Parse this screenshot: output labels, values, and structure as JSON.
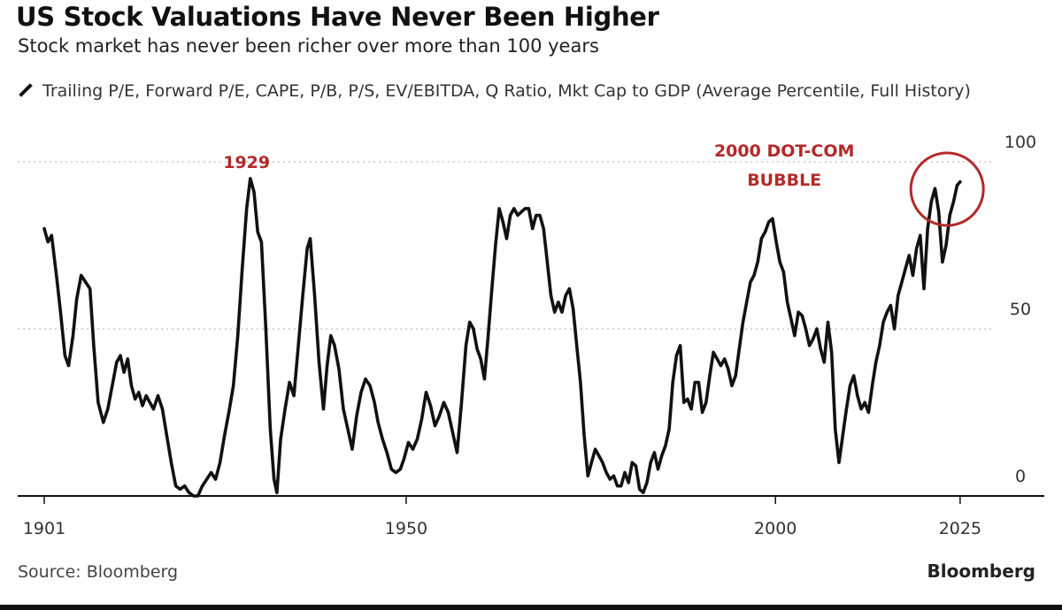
{
  "header": {
    "title": "US Stock Valuations Have Never Been Higher",
    "subtitle": "Stock market has never been richer over more than 100 years"
  },
  "legend": {
    "label": "Trailing P/E, Forward P/E, CAPE, P/B, P/S, EV/EBITDA, Q Ratio, Mkt Cap to GDP (Average Percentile, Full History)"
  },
  "footer": {
    "source": "Source: Bloomberg",
    "brand": "Bloomberg"
  },
  "chart_data": {
    "type": "line",
    "title": "US Stock Valuations Have Never Been Higher",
    "subtitle": "Stock market has never been richer over more than 100 years",
    "xlabel": "",
    "ylabel": "",
    "xlim": [
      1901,
      2034
    ],
    "ylim": [
      0,
      100
    ],
    "x_ticks": [
      1901,
      1950,
      2000,
      2025
    ],
    "x_tick_labels": [
      "1901",
      "1950",
      "2000",
      "2025"
    ],
    "y_ticks": [
      0,
      50,
      100
    ],
    "y_tick_labels": [
      "0",
      "50",
      "100"
    ],
    "grid": "horizontal dotted at 50 and 100",
    "line_color": "#111111",
    "annotation_color": "#b22a2a",
    "annotations": [
      {
        "text": "1929",
        "x": 1929,
        "y": 98
      },
      {
        "text": "2000 DOT-COM BUBBLE",
        "x": 1997,
        "y": 98
      },
      {
        "text": "",
        "shape": "circle",
        "x": 2023,
        "y": 91
      }
    ],
    "series": [
      {
        "values": [
          [
            1901,
            80
          ],
          [
            1901.5,
            76
          ],
          [
            1902,
            78
          ],
          [
            1902.7,
            65
          ],
          [
            1903.2,
            55
          ],
          [
            1903.8,
            42
          ],
          [
            1904.3,
            39
          ],
          [
            1904.9,
            48
          ],
          [
            1905.4,
            59
          ],
          [
            1906,
            66
          ],
          [
            1906.6,
            64
          ],
          [
            1907.2,
            62
          ],
          [
            1907.7,
            45
          ],
          [
            1908.3,
            28
          ],
          [
            1909,
            22
          ],
          [
            1909.6,
            26
          ],
          [
            1910.2,
            33
          ],
          [
            1910.8,
            40
          ],
          [
            1911.3,
            42
          ],
          [
            1911.8,
            37
          ],
          [
            1912.3,
            41
          ],
          [
            1912.8,
            33
          ],
          [
            1913.3,
            29
          ],
          [
            1913.8,
            31
          ],
          [
            1914.3,
            27
          ],
          [
            1914.8,
            30
          ],
          [
            1915.3,
            28
          ],
          [
            1915.8,
            26
          ],
          [
            1916.4,
            30
          ],
          [
            1917,
            26
          ],
          [
            1917.6,
            18
          ],
          [
            1918.2,
            10
          ],
          [
            1918.8,
            3
          ],
          [
            1919.4,
            2
          ],
          [
            1920,
            3
          ],
          [
            1920.6,
            1
          ],
          [
            1921.2,
            0
          ],
          [
            1921.8,
            0
          ],
          [
            1922.4,
            3
          ],
          [
            1923,
            5
          ],
          [
            1923.6,
            7
          ],
          [
            1924.2,
            5
          ],
          [
            1924.8,
            10
          ],
          [
            1925.4,
            18
          ],
          [
            1926,
            25
          ],
          [
            1926.6,
            33
          ],
          [
            1927.2,
            48
          ],
          [
            1927.8,
            68
          ],
          [
            1928.4,
            86
          ],
          [
            1928.9,
            95
          ],
          [
            1929.4,
            91
          ],
          [
            1929.9,
            79
          ],
          [
            1930.4,
            76
          ],
          [
            1931,
            50
          ],
          [
            1931.6,
            20
          ],
          [
            1932.1,
            5
          ],
          [
            1932.5,
            1
          ],
          [
            1933,
            17
          ],
          [
            1933.6,
            26
          ],
          [
            1934.2,
            34
          ],
          [
            1934.8,
            30
          ],
          [
            1935.4,
            45
          ],
          [
            1936,
            60
          ],
          [
            1936.6,
            74
          ],
          [
            1937,
            77
          ],
          [
            1937.6,
            60
          ],
          [
            1938.2,
            40
          ],
          [
            1938.8,
            26
          ],
          [
            1939.3,
            39
          ],
          [
            1939.8,
            48
          ],
          [
            1940.3,
            45
          ],
          [
            1940.9,
            38
          ],
          [
            1941.5,
            26
          ],
          [
            1942.1,
            20
          ],
          [
            1942.7,
            14
          ],
          [
            1943.3,
            24
          ],
          [
            1943.9,
            31
          ],
          [
            1944.5,
            35
          ],
          [
            1945.1,
            33
          ],
          [
            1945.7,
            28
          ],
          [
            1946.2,
            22
          ],
          [
            1946.8,
            17
          ],
          [
            1947.4,
            13
          ],
          [
            1948,
            8
          ],
          [
            1948.6,
            7
          ],
          [
            1949.2,
            8
          ],
          [
            1949.7,
            11
          ],
          [
            1950.3,
            16
          ],
          [
            1950.9,
            14
          ],
          [
            1951.5,
            17
          ],
          [
            1952.1,
            23
          ],
          [
            1952.7,
            31
          ],
          [
            1953.3,
            27
          ],
          [
            1953.9,
            21
          ],
          [
            1954.5,
            24
          ],
          [
            1955.1,
            28
          ],
          [
            1955.7,
            25
          ],
          [
            1956.3,
            19
          ],
          [
            1956.9,
            13
          ],
          [
            1957.5,
            28
          ],
          [
            1958.1,
            45
          ],
          [
            1958.6,
            52
          ],
          [
            1959.1,
            50
          ],
          [
            1959.6,
            44
          ],
          [
            1960.1,
            41
          ],
          [
            1960.6,
            35
          ],
          [
            1961.1,
            48
          ],
          [
            1961.6,
            62
          ],
          [
            1962.1,
            75
          ],
          [
            1962.6,
            86
          ],
          [
            1963.1,
            82
          ],
          [
            1963.6,
            77
          ],
          [
            1964.1,
            84
          ],
          [
            1964.6,
            86
          ],
          [
            1965.1,
            84
          ],
          [
            1965.6,
            85
          ],
          [
            1966.1,
            86
          ],
          [
            1966.6,
            86
          ],
          [
            1967.1,
            80
          ],
          [
            1967.6,
            84
          ],
          [
            1968.1,
            84
          ],
          [
            1968.6,
            80
          ],
          [
            1969.1,
            70
          ],
          [
            1969.6,
            60
          ],
          [
            1970.1,
            55
          ],
          [
            1970.6,
            58
          ],
          [
            1971.1,
            55
          ],
          [
            1971.6,
            60
          ],
          [
            1972.1,
            62
          ],
          [
            1972.6,
            56
          ],
          [
            1973.1,
            45
          ],
          [
            1973.6,
            34
          ],
          [
            1974.1,
            18
          ],
          [
            1974.6,
            6
          ],
          [
            1975.1,
            10
          ],
          [
            1975.6,
            14
          ],
          [
            1976.1,
            12
          ],
          [
            1976.6,
            10
          ],
          [
            1977.1,
            7
          ],
          [
            1977.6,
            5
          ],
          [
            1978.1,
            6
          ],
          [
            1978.6,
            3
          ],
          [
            1979.1,
            3
          ],
          [
            1979.6,
            7
          ],
          [
            1980.1,
            4
          ],
          [
            1980.6,
            10
          ],
          [
            1981.1,
            9
          ],
          [
            1981.6,
            2
          ],
          [
            1982.1,
            1
          ],
          [
            1982.6,
            4
          ],
          [
            1983.1,
            10
          ],
          [
            1983.6,
            13
          ],
          [
            1984.1,
            8
          ],
          [
            1984.6,
            12
          ],
          [
            1985.1,
            15
          ],
          [
            1985.6,
            20
          ],
          [
            1986.1,
            34
          ],
          [
            1986.6,
            42
          ],
          [
            1987.1,
            45
          ],
          [
            1987.6,
            28
          ],
          [
            1988.1,
            29
          ],
          [
            1988.6,
            26
          ],
          [
            1989.1,
            34
          ],
          [
            1989.6,
            34
          ],
          [
            1990.1,
            25
          ],
          [
            1990.6,
            28
          ],
          [
            1991.1,
            36
          ],
          [
            1991.6,
            43
          ],
          [
            1992.1,
            41
          ],
          [
            1992.6,
            39
          ],
          [
            1993.1,
            41
          ],
          [
            1993.6,
            38
          ],
          [
            1994.1,
            33
          ],
          [
            1994.6,
            36
          ],
          [
            1995.1,
            44
          ],
          [
            1995.6,
            52
          ],
          [
            1996.1,
            58
          ],
          [
            1996.6,
            64
          ],
          [
            1997.1,
            66
          ],
          [
            1997.6,
            70
          ],
          [
            1998.1,
            77
          ],
          [
            1998.6,
            79
          ],
          [
            1999.1,
            82
          ],
          [
            1999.6,
            83
          ],
          [
            2000.1,
            76
          ],
          [
            2000.6,
            70
          ],
          [
            2001.1,
            67
          ],
          [
            2001.6,
            58
          ],
          [
            2002.1,
            53
          ],
          [
            2002.6,
            48
          ],
          [
            2003.1,
            55
          ],
          [
            2003.6,
            54
          ],
          [
            2004.1,
            50
          ],
          [
            2004.6,
            45
          ],
          [
            2005.1,
            47
          ],
          [
            2005.6,
            50
          ],
          [
            2006.1,
            44
          ],
          [
            2006.6,
            40
          ],
          [
            2007.1,
            52
          ],
          [
            2007.6,
            43
          ],
          [
            2008.1,
            20
          ],
          [
            2008.6,
            10
          ],
          [
            2009.1,
            18
          ],
          [
            2009.6,
            26
          ],
          [
            2010.1,
            33
          ],
          [
            2010.6,
            36
          ],
          [
            2011.1,
            30
          ],
          [
            2011.6,
            26
          ],
          [
            2012.1,
            28
          ],
          [
            2012.6,
            25
          ],
          [
            2013.1,
            33
          ],
          [
            2013.6,
            40
          ],
          [
            2014.1,
            45
          ],
          [
            2014.6,
            52
          ],
          [
            2015.1,
            55
          ],
          [
            2015.6,
            57
          ],
          [
            2016.1,
            50
          ],
          [
            2016.6,
            60
          ],
          [
            2017.1,
            64
          ],
          [
            2017.6,
            68
          ],
          [
            2018.1,
            72
          ],
          [
            2018.6,
            66
          ],
          [
            2019.1,
            74
          ],
          [
            2019.6,
            78
          ],
          [
            2020.1,
            62
          ],
          [
            2020.6,
            80
          ],
          [
            2021.1,
            88
          ],
          [
            2021.6,
            92
          ],
          [
            2022.1,
            85
          ],
          [
            2022.6,
            70
          ],
          [
            2023.1,
            75
          ],
          [
            2023.6,
            84
          ],
          [
            2024.1,
            88
          ],
          [
            2024.6,
            93
          ],
          [
            2025.0,
            94
          ]
        ]
      }
    ]
  }
}
